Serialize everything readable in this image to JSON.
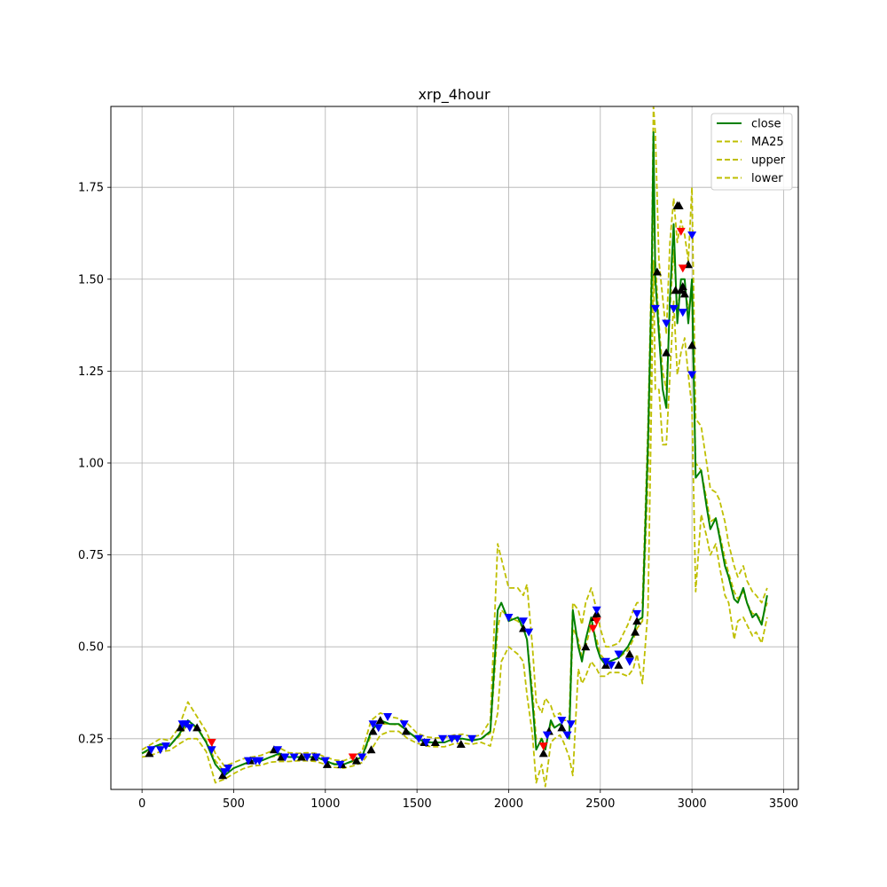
{
  "chart_data": {
    "type": "line",
    "title": "xrp_4hour",
    "xlabel": "",
    "ylabel": "",
    "xlim": [
      -170,
      3580
    ],
    "ylim": [
      0.112,
      1.97
    ],
    "x_ticks": [
      0,
      500,
      1000,
      1500,
      2000,
      2500,
      3000,
      3500
    ],
    "y_ticks": [
      0.25,
      0.5,
      0.75,
      1.0,
      1.25,
      1.5,
      1.75
    ],
    "x_tick_labels": [
      "0",
      "500",
      "1000",
      "1500",
      "2000",
      "2500",
      "3000",
      "3500"
    ],
    "y_tick_labels": [
      "0.25",
      "0.50",
      "0.75",
      "1.00",
      "1.25",
      "1.50",
      "1.75"
    ],
    "grid": true,
    "legend_position": "top-right",
    "series": [
      {
        "name": "close",
        "color": "#008000",
        "style": "solid",
        "x": [
          0,
          50,
          100,
          150,
          200,
          250,
          300,
          350,
          400,
          450,
          500,
          550,
          600,
          650,
          700,
          750,
          800,
          850,
          900,
          950,
          1000,
          1050,
          1100,
          1150,
          1200,
          1250,
          1300,
          1350,
          1400,
          1450,
          1500,
          1550,
          1600,
          1650,
          1700,
          1750,
          1800,
          1850,
          1900,
          1940,
          1960,
          2000,
          2050,
          2080,
          2100,
          2130,
          2150,
          2180,
          2200,
          2230,
          2250,
          2280,
          2300,
          2330,
          2350,
          2380,
          2400,
          2420,
          2450,
          2480,
          2500,
          2530,
          2550,
          2600,
          2650,
          2680,
          2700,
          2730,
          2760,
          2780,
          2790,
          2800,
          2820,
          2840,
          2860,
          2880,
          2900,
          2920,
          2940,
          2960,
          2980,
          3000,
          3020,
          3050,
          3080,
          3100,
          3130,
          3150,
          3180,
          3200,
          3230,
          3250,
          3280,
          3300,
          3330,
          3350,
          3380,
          3410
        ],
        "values": [
          0.21,
          0.225,
          0.235,
          0.23,
          0.26,
          0.3,
          0.28,
          0.24,
          0.18,
          0.15,
          0.17,
          0.18,
          0.19,
          0.19,
          0.2,
          0.21,
          0.2,
          0.2,
          0.2,
          0.2,
          0.19,
          0.18,
          0.18,
          0.19,
          0.2,
          0.27,
          0.3,
          0.29,
          0.29,
          0.27,
          0.25,
          0.24,
          0.24,
          0.24,
          0.25,
          0.25,
          0.245,
          0.25,
          0.27,
          0.6,
          0.62,
          0.57,
          0.58,
          0.55,
          0.52,
          0.35,
          0.22,
          0.25,
          0.22,
          0.3,
          0.28,
          0.29,
          0.27,
          0.25,
          0.6,
          0.5,
          0.46,
          0.52,
          0.58,
          0.5,
          0.47,
          0.45,
          0.46,
          0.47,
          0.5,
          0.53,
          0.57,
          0.58,
          1.05,
          1.5,
          1.9,
          1.5,
          1.35,
          1.2,
          1.15,
          1.45,
          1.65,
          1.38,
          1.5,
          1.5,
          1.38,
          1.5,
          0.96,
          0.98,
          0.88,
          0.82,
          0.85,
          0.8,
          0.72,
          0.69,
          0.63,
          0.62,
          0.66,
          0.62,
          0.58,
          0.59,
          0.56,
          0.64
        ]
      },
      {
        "name": "MA25",
        "color": "#bfbf00",
        "style": "dashed",
        "x": [
          0,
          50,
          100,
          150,
          200,
          250,
          300,
          350,
          400,
          450,
          500,
          550,
          600,
          650,
          700,
          750,
          800,
          850,
          900,
          950,
          1000,
          1050,
          1100,
          1150,
          1200,
          1250,
          1300,
          1350,
          1400,
          1450,
          1500,
          1550,
          1600,
          1650,
          1700,
          1750,
          1800,
          1850,
          1900,
          1940,
          1960,
          2000,
          2050,
          2080,
          2100,
          2130,
          2150,
          2180,
          2200,
          2230,
          2250,
          2280,
          2300,
          2330,
          2350,
          2380,
          2400,
          2420,
          2450,
          2480,
          2500,
          2530,
          2550,
          2600,
          2650,
          2680,
          2700,
          2730,
          2760,
          2780,
          2790,
          2800,
          2820,
          2840,
          2860,
          2880,
          2900,
          2920,
          2940,
          2960,
          2980,
          3000,
          3020,
          3050,
          3080,
          3100,
          3130,
          3150,
          3180,
          3200,
          3230,
          3250,
          3280,
          3300,
          3330,
          3350,
          3380,
          3410
        ],
        "values": [
          0.21,
          0.22,
          0.232,
          0.232,
          0.255,
          0.29,
          0.28,
          0.245,
          0.19,
          0.16,
          0.17,
          0.18,
          0.188,
          0.19,
          0.2,
          0.205,
          0.2,
          0.2,
          0.2,
          0.2,
          0.19,
          0.182,
          0.18,
          0.188,
          0.2,
          0.26,
          0.29,
          0.29,
          0.288,
          0.27,
          0.252,
          0.242,
          0.24,
          0.24,
          0.248,
          0.25,
          0.245,
          0.25,
          0.265,
          0.55,
          0.6,
          0.58,
          0.57,
          0.55,
          0.52,
          0.38,
          0.25,
          0.25,
          0.23,
          0.29,
          0.28,
          0.29,
          0.27,
          0.26,
          0.55,
          0.52,
          0.47,
          0.5,
          0.56,
          0.52,
          0.48,
          0.46,
          0.46,
          0.47,
          0.49,
          0.52,
          0.55,
          0.57,
          0.95,
          1.4,
          1.75,
          1.55,
          1.38,
          1.25,
          1.2,
          1.42,
          1.58,
          1.42,
          1.48,
          1.48,
          1.42,
          1.45,
          1.0,
          0.98,
          0.9,
          0.84,
          0.85,
          0.81,
          0.74,
          0.7,
          0.65,
          0.63,
          0.65,
          0.62,
          0.59,
          0.59,
          0.57,
          0.62
        ]
      },
      {
        "name": "upper",
        "color": "#bfbf00",
        "style": "dashed",
        "x": [
          0,
          50,
          100,
          150,
          200,
          250,
          300,
          350,
          400,
          450,
          500,
          550,
          600,
          650,
          700,
          750,
          800,
          850,
          900,
          950,
          1000,
          1050,
          1100,
          1150,
          1200,
          1250,
          1300,
          1350,
          1400,
          1450,
          1500,
          1550,
          1600,
          1650,
          1700,
          1750,
          1800,
          1850,
          1900,
          1940,
          1960,
          2000,
          2050,
          2080,
          2100,
          2130,
          2150,
          2180,
          2200,
          2230,
          2250,
          2280,
          2300,
          2330,
          2350,
          2380,
          2400,
          2420,
          2450,
          2480,
          2500,
          2530,
          2550,
          2600,
          2650,
          2680,
          2700,
          2730,
          2760,
          2780,
          2790,
          2800,
          2820,
          2840,
          2860,
          2880,
          2900,
          2920,
          2940,
          2960,
          2980,
          3000,
          3020,
          3050,
          3080,
          3100,
          3130,
          3150,
          3180,
          3200,
          3230,
          3250,
          3280,
          3300,
          3330,
          3350,
          3380,
          3410
        ],
        "values": [
          0.22,
          0.235,
          0.25,
          0.245,
          0.28,
          0.35,
          0.31,
          0.27,
          0.21,
          0.175,
          0.185,
          0.195,
          0.2,
          0.205,
          0.215,
          0.225,
          0.212,
          0.21,
          0.212,
          0.21,
          0.2,
          0.192,
          0.19,
          0.2,
          0.215,
          0.3,
          0.32,
          0.31,
          0.305,
          0.29,
          0.265,
          0.255,
          0.252,
          0.253,
          0.26,
          0.262,
          0.255,
          0.26,
          0.3,
          0.78,
          0.74,
          0.66,
          0.66,
          0.64,
          0.67,
          0.5,
          0.35,
          0.32,
          0.36,
          0.34,
          0.31,
          0.32,
          0.3,
          0.3,
          0.62,
          0.6,
          0.56,
          0.62,
          0.66,
          0.6,
          0.55,
          0.5,
          0.5,
          0.51,
          0.56,
          0.6,
          0.62,
          0.62,
          1.1,
          1.55,
          1.97,
          1.9,
          1.55,
          1.45,
          1.35,
          1.6,
          1.72,
          1.6,
          1.66,
          1.62,
          1.55,
          1.75,
          1.12,
          1.1,
          1.0,
          0.93,
          0.92,
          0.9,
          0.84,
          0.78,
          0.72,
          0.69,
          0.72,
          0.68,
          0.65,
          0.64,
          0.62,
          0.66
        ]
      },
      {
        "name": "lower",
        "color": "#bfbf00",
        "style": "dashed",
        "x": [
          0,
          50,
          100,
          150,
          200,
          250,
          300,
          350,
          400,
          450,
          500,
          550,
          600,
          650,
          700,
          750,
          800,
          850,
          900,
          950,
          1000,
          1050,
          1100,
          1150,
          1200,
          1250,
          1300,
          1350,
          1400,
          1450,
          1500,
          1550,
          1600,
          1650,
          1700,
          1750,
          1800,
          1850,
          1900,
          1940,
          1960,
          2000,
          2050,
          2080,
          2100,
          2130,
          2150,
          2180,
          2200,
          2230,
          2250,
          2280,
          2300,
          2330,
          2350,
          2380,
          2400,
          2420,
          2450,
          2480,
          2500,
          2530,
          2550,
          2600,
          2650,
          2680,
          2700,
          2730,
          2760,
          2780,
          2790,
          2800,
          2820,
          2840,
          2860,
          2880,
          2900,
          2920,
          2940,
          2960,
          2980,
          3000,
          3020,
          3050,
          3080,
          3100,
          3130,
          3150,
          3180,
          3200,
          3230,
          3250,
          3280,
          3300,
          3330,
          3350,
          3380,
          3410
        ],
        "values": [
          0.2,
          0.205,
          0.215,
          0.218,
          0.235,
          0.25,
          0.25,
          0.215,
          0.13,
          0.14,
          0.155,
          0.168,
          0.176,
          0.178,
          0.186,
          0.188,
          0.188,
          0.19,
          0.19,
          0.188,
          0.18,
          0.172,
          0.17,
          0.176,
          0.185,
          0.22,
          0.26,
          0.27,
          0.27,
          0.25,
          0.238,
          0.23,
          0.228,
          0.228,
          0.236,
          0.238,
          0.235,
          0.24,
          0.23,
          0.32,
          0.46,
          0.5,
          0.48,
          0.46,
          0.37,
          0.26,
          0.13,
          0.18,
          0.12,
          0.24,
          0.25,
          0.26,
          0.24,
          0.2,
          0.15,
          0.44,
          0.4,
          0.42,
          0.46,
          0.44,
          0.42,
          0.42,
          0.43,
          0.43,
          0.42,
          0.44,
          0.48,
          0.4,
          0.6,
          1.2,
          1.55,
          1.2,
          1.2,
          1.05,
          1.05,
          1.24,
          1.44,
          1.24,
          1.3,
          1.34,
          1.24,
          1.15,
          0.65,
          0.86,
          0.8,
          0.75,
          0.78,
          0.72,
          0.64,
          0.62,
          0.52,
          0.57,
          0.58,
          0.56,
          0.53,
          0.54,
          0.51,
          0.58
        ]
      }
    ],
    "markers": {
      "buy": {
        "color": "#000000",
        "shape": "triangle-up",
        "x": [
          40,
          210,
          300,
          440,
          590,
          720,
          760,
          870,
          940,
          1010,
          1090,
          1170,
          1250,
          1260,
          1300,
          1440,
          1540,
          1600,
          1740,
          2080,
          2190,
          2220,
          2290,
          2420,
          2470,
          2480,
          2530,
          2600,
          2660,
          2690,
          2700,
          2810,
          2860,
          2910,
          2920,
          2930,
          2940,
          2950,
          2960,
          2980,
          3000
        ],
        "values": [
          0.21,
          0.28,
          0.28,
          0.15,
          0.19,
          0.22,
          0.2,
          0.2,
          0.2,
          0.18,
          0.18,
          0.19,
          0.22,
          0.27,
          0.3,
          0.27,
          0.24,
          0.24,
          0.235,
          0.55,
          0.21,
          0.27,
          0.28,
          0.5,
          0.58,
          0.59,
          0.45,
          0.45,
          0.48,
          0.54,
          0.57,
          1.52,
          1.3,
          1.47,
          1.7,
          1.7,
          1.47,
          1.48,
          1.46,
          1.54,
          1.32
        ]
      },
      "sell": {
        "color": "#0000ff",
        "shape": "triangle-down",
        "x": [
          50,
          100,
          130,
          220,
          240,
          260,
          380,
          450,
          470,
          580,
          620,
          640,
          740,
          780,
          830,
          900,
          950,
          1000,
          1080,
          1200,
          1260,
          1290,
          1340,
          1430,
          1510,
          1550,
          1640,
          1690,
          1720,
          1800,
          2000,
          2080,
          2110,
          2210,
          2290,
          2320,
          2340,
          2480,
          2530,
          2560,
          2600,
          2660,
          2700,
          2800,
          2860,
          2900,
          2950,
          3000,
          3000
        ],
        "values": [
          0.22,
          0.22,
          0.23,
          0.29,
          0.29,
          0.28,
          0.22,
          0.16,
          0.17,
          0.19,
          0.19,
          0.19,
          0.22,
          0.2,
          0.2,
          0.2,
          0.2,
          0.19,
          0.18,
          0.2,
          0.29,
          0.28,
          0.31,
          0.29,
          0.25,
          0.24,
          0.25,
          0.25,
          0.25,
          0.25,
          0.58,
          0.57,
          0.54,
          0.26,
          0.3,
          0.26,
          0.29,
          0.6,
          0.46,
          0.45,
          0.48,
          0.46,
          0.59,
          1.42,
          1.38,
          1.42,
          1.41,
          1.62,
          1.24
        ]
      },
      "stop": {
        "color": "#ff0000",
        "shape": "triangle-down",
        "x": [
          380,
          1150,
          2190,
          2460,
          2480,
          2940,
          2950
        ],
        "values": [
          0.24,
          0.2,
          0.23,
          0.55,
          0.57,
          1.63,
          1.53
        ]
      }
    }
  }
}
